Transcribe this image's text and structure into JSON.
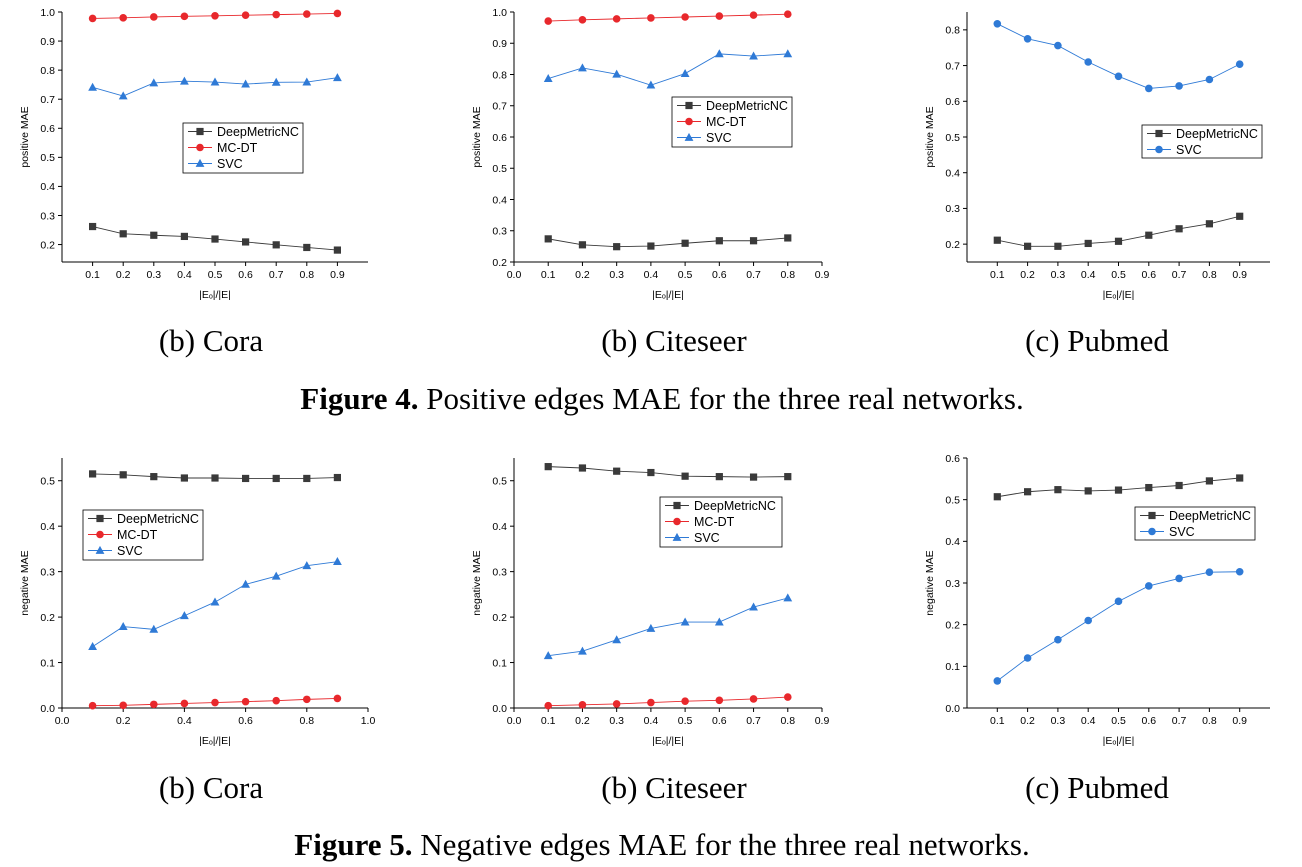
{
  "figures": [
    {
      "caption_bold": "Figure 4.",
      "caption_text": " Positive edges MAE for the three real networks."
    },
    {
      "caption_bold": "Figure 5.",
      "caption_text": " Negative edges MAE for the three real networks."
    }
  ],
  "colors": {
    "DeepMetricNC": "#3a3a3a",
    "MC-DT": "#e8282c",
    "SVC": "#2f7ad6"
  },
  "chart_data": [
    {
      "type": "line",
      "subcaption": "(b)  Cora",
      "xlabel": "|Eₒ|/|E|",
      "ylabel": "positive MAE",
      "xlim": [
        0.0,
        1.0
      ],
      "ylim": [
        0.14,
        1.0
      ],
      "xticks": [
        0.1,
        0.2,
        0.3,
        0.4,
        0.5,
        0.6,
        0.7,
        0.8,
        0.9
      ],
      "yticks": [
        0.2,
        0.3,
        0.4,
        0.5,
        0.6,
        0.7,
        0.8,
        0.9,
        1.0
      ],
      "tick_decimals": 1,
      "legend_position": "center",
      "series": [
        {
          "name": "DeepMetricNC",
          "marker": "square",
          "x": [
            0.1,
            0.2,
            0.3,
            0.4,
            0.5,
            0.6,
            0.7,
            0.8,
            0.9
          ],
          "values": [
            0.262,
            0.237,
            0.232,
            0.228,
            0.219,
            0.209,
            0.199,
            0.19,
            0.181
          ]
        },
        {
          "name": "MC-DT",
          "marker": "circle",
          "x": [
            0.1,
            0.2,
            0.3,
            0.4,
            0.5,
            0.6,
            0.7,
            0.8,
            0.9
          ],
          "values": [
            0.978,
            0.98,
            0.983,
            0.985,
            0.987,
            0.989,
            0.991,
            0.993,
            0.995
          ]
        },
        {
          "name": "SVC",
          "marker": "triangle",
          "x": [
            0.1,
            0.2,
            0.3,
            0.4,
            0.5,
            0.6,
            0.7,
            0.8,
            0.9
          ],
          "values": [
            0.741,
            0.711,
            0.756,
            0.762,
            0.759,
            0.752,
            0.758,
            0.759,
            0.774
          ]
        }
      ]
    },
    {
      "type": "line",
      "subcaption": "(b)  Citeseer",
      "xlabel": "|Eₒ|/|E|",
      "ylabel": "positive MAE",
      "xlim": [
        0.0,
        0.9
      ],
      "ylim": [
        0.2,
        1.0
      ],
      "xticks": [
        0.0,
        0.1,
        0.2,
        0.3,
        0.4,
        0.5,
        0.6,
        0.7,
        0.8,
        0.9
      ],
      "yticks": [
        0.2,
        0.3,
        0.4,
        0.5,
        0.6,
        0.7,
        0.8,
        0.9,
        1.0
      ],
      "tick_decimals": 1,
      "legend_position": "center-right",
      "series": [
        {
          "name": "DeepMetricNC",
          "marker": "square",
          "x": [
            0.1,
            0.2,
            0.3,
            0.4,
            0.5,
            0.6,
            0.7,
            0.8
          ],
          "values": [
            0.274,
            0.255,
            0.249,
            0.251,
            0.26,
            0.268,
            0.268,
            0.277
          ]
        },
        {
          "name": "MC-DT",
          "marker": "circle",
          "x": [
            0.1,
            0.2,
            0.3,
            0.4,
            0.5,
            0.6,
            0.7,
            0.8
          ],
          "values": [
            0.971,
            0.975,
            0.978,
            0.981,
            0.984,
            0.987,
            0.99,
            0.993
          ]
        },
        {
          "name": "SVC",
          "marker": "triangle",
          "x": [
            0.1,
            0.2,
            0.3,
            0.4,
            0.5,
            0.6,
            0.7,
            0.8
          ],
          "values": [
            0.787,
            0.821,
            0.801,
            0.766,
            0.803,
            0.866,
            0.859,
            0.866
          ]
        }
      ]
    },
    {
      "type": "line",
      "subcaption": "(c) Pubmed",
      "xlabel": "|Eₒ|/|E|",
      "ylabel": "positive MAE",
      "xlim": [
        0.0,
        1.0
      ],
      "ylim": [
        0.15,
        0.85
      ],
      "xticks": [
        0.1,
        0.2,
        0.3,
        0.4,
        0.5,
        0.6,
        0.7,
        0.8,
        0.9
      ],
      "yticks": [
        0.2,
        0.3,
        0.4,
        0.5,
        0.6,
        0.7,
        0.8
      ],
      "tick_decimals": 1,
      "legend_position": "center-right",
      "series": [
        {
          "name": "DeepMetricNC",
          "marker": "square",
          "x": [
            0.1,
            0.2,
            0.3,
            0.4,
            0.5,
            0.6,
            0.7,
            0.8,
            0.9
          ],
          "values": [
            0.211,
            0.194,
            0.194,
            0.202,
            0.208,
            0.225,
            0.243,
            0.257,
            0.278
          ]
        },
        {
          "name": "SVC",
          "marker": "circle",
          "x": [
            0.1,
            0.2,
            0.3,
            0.4,
            0.5,
            0.6,
            0.7,
            0.8,
            0.9
          ],
          "values": [
            0.817,
            0.775,
            0.756,
            0.71,
            0.67,
            0.636,
            0.643,
            0.661,
            0.704
          ]
        }
      ]
    },
    {
      "type": "line",
      "subcaption": "(b)  Cora",
      "xlabel": "|Eₒ|/|E|",
      "ylabel": "negative MAE",
      "xlim": [
        0.0,
        1.0
      ],
      "ylim": [
        0.0,
        0.55
      ],
      "xticks": [
        0.0,
        0.2,
        0.4,
        0.6,
        0.8,
        1.0
      ],
      "yticks": [
        0.0,
        0.1,
        0.2,
        0.3,
        0.4,
        0.5
      ],
      "tick_decimals": 1,
      "legend_position": "center-left",
      "series": [
        {
          "name": "DeepMetricNC",
          "marker": "square",
          "x": [
            0.1,
            0.2,
            0.3,
            0.4,
            0.5,
            0.6,
            0.7,
            0.8,
            0.9
          ],
          "values": [
            0.515,
            0.513,
            0.509,
            0.506,
            0.506,
            0.505,
            0.505,
            0.505,
            0.507
          ]
        },
        {
          "name": "MC-DT",
          "marker": "circle",
          "x": [
            0.1,
            0.2,
            0.3,
            0.4,
            0.5,
            0.6,
            0.7,
            0.8,
            0.9
          ],
          "values": [
            0.005,
            0.006,
            0.008,
            0.01,
            0.012,
            0.014,
            0.016,
            0.019,
            0.021
          ]
        },
        {
          "name": "SVC",
          "marker": "triangle",
          "x": [
            0.1,
            0.2,
            0.3,
            0.4,
            0.5,
            0.6,
            0.7,
            0.8,
            0.9
          ],
          "values": [
            0.135,
            0.179,
            0.173,
            0.203,
            0.233,
            0.272,
            0.29,
            0.313,
            0.322
          ]
        }
      ]
    },
    {
      "type": "line",
      "subcaption": "(b)  Citeseer",
      "xlabel": "|Eₒ|/|E|",
      "ylabel": "negative MAE",
      "xlim": [
        0.0,
        0.9
      ],
      "ylim": [
        0.0,
        0.55
      ],
      "xticks": [
        0.0,
        0.1,
        0.2,
        0.3,
        0.4,
        0.5,
        0.6,
        0.7,
        0.8,
        0.9
      ],
      "yticks": [
        0.0,
        0.1,
        0.2,
        0.3,
        0.4,
        0.5
      ],
      "tick_decimals": 1,
      "legend_position": "center-right",
      "series": [
        {
          "name": "DeepMetricNC",
          "marker": "square",
          "x": [
            0.1,
            0.2,
            0.3,
            0.4,
            0.5,
            0.6,
            0.7,
            0.8
          ],
          "values": [
            0.531,
            0.528,
            0.521,
            0.518,
            0.51,
            0.509,
            0.508,
            0.509
          ]
        },
        {
          "name": "MC-DT",
          "marker": "circle",
          "x": [
            0.1,
            0.2,
            0.3,
            0.4,
            0.5,
            0.6,
            0.7,
            0.8
          ],
          "values": [
            0.005,
            0.007,
            0.009,
            0.012,
            0.015,
            0.017,
            0.02,
            0.024
          ]
        },
        {
          "name": "SVC",
          "marker": "triangle",
          "x": [
            0.1,
            0.2,
            0.3,
            0.4,
            0.5,
            0.6,
            0.7,
            0.8
          ],
          "values": [
            0.115,
            0.125,
            0.15,
            0.175,
            0.189,
            0.189,
            0.222,
            0.242
          ]
        }
      ]
    },
    {
      "type": "line",
      "subcaption": "(c) Pubmed",
      "xlabel": "|Eₒ|/|E|",
      "ylabel": "negative MAE",
      "xlim": [
        0.0,
        1.0
      ],
      "ylim": [
        0.0,
        0.6
      ],
      "xticks": [
        0.1,
        0.2,
        0.3,
        0.4,
        0.5,
        0.6,
        0.7,
        0.8,
        0.9
      ],
      "yticks": [
        0.0,
        0.1,
        0.2,
        0.3,
        0.4,
        0.5,
        0.6
      ],
      "tick_decimals": 1,
      "legend_position": "top-right",
      "series": [
        {
          "name": "DeepMetricNC",
          "marker": "square",
          "x": [
            0.1,
            0.2,
            0.3,
            0.4,
            0.5,
            0.6,
            0.7,
            0.8,
            0.9
          ],
          "values": [
            0.507,
            0.519,
            0.524,
            0.521,
            0.523,
            0.529,
            0.534,
            0.545,
            0.552
          ]
        },
        {
          "name": "SVC",
          "marker": "circle",
          "x": [
            0.1,
            0.2,
            0.3,
            0.4,
            0.5,
            0.6,
            0.7,
            0.8,
            0.9
          ],
          "values": [
            0.065,
            0.12,
            0.164,
            0.21,
            0.256,
            0.293,
            0.311,
            0.326,
            0.327
          ]
        }
      ]
    }
  ]
}
